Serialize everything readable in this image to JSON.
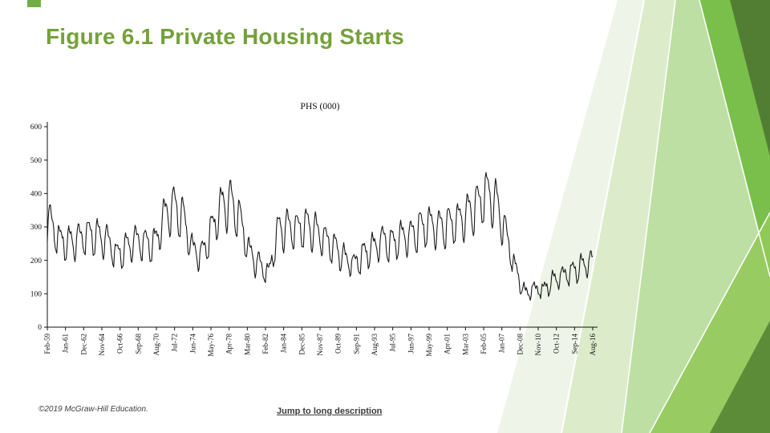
{
  "slide": {
    "title": "Figure 6.1 Private Housing Starts",
    "footer_copyright": "©2019 McGraw-Hill Education.",
    "link_text": "Jump to long description"
  },
  "theme": {
    "title_color": "#74a13a",
    "accent_green": "#70ad47",
    "footer_color": "#404040",
    "link_color": "#3a3a3a"
  },
  "chart_data": {
    "type": "line",
    "title": "PHS (000)",
    "xlabel": "",
    "ylabel": "",
    "ylim": [
      0,
      600
    ],
    "yticks": [
      0,
      100,
      200,
      300,
      400,
      500,
      600
    ],
    "grid": false,
    "legend": "none",
    "line_color": "#1a1a1a",
    "x_tick_labels": [
      "Feb-59",
      "Jan-61",
      "Dec-62",
      "Nov-64",
      "Oct-66",
      "Sep-68",
      "Aug-70",
      "Jul-72",
      "Jun-74",
      "May-76",
      "Apr-78",
      "Mar-80",
      "Feb-82",
      "Jan-84",
      "Dec-85",
      "Nov-87",
      "Oct-89",
      "Sep-91",
      "Aug-93",
      "Jul-95",
      "Jun-97",
      "May-99",
      "Apr-01",
      "Mar-03",
      "Feb-05",
      "Jan-07",
      "Dec-08",
      "Nov-10",
      "Oct-12",
      "Sep-14",
      "Aug-16"
    ],
    "x_tick_interval_months": 23,
    "start_month": "Feb-59",
    "end_month": "Aug-16",
    "n_months": 691,
    "annual_trend": {
      "start_year": 1959,
      "values": [
        310,
        255,
        250,
        262,
        275,
        268,
        258,
        212,
        235,
        258,
        248,
        246,
        330,
        358,
        325,
        228,
        215,
        288,
        358,
        372,
        318,
        218,
        185,
        158,
        288,
        295,
        290,
        300,
        284,
        258,
        234,
        204,
        186,
        214,
        236,
        258,
        246,
        268,
        270,
        294,
        304,
        294,
        304,
        314,
        336,
        362,
        398,
        368,
        278,
        172,
        100,
        114,
        111,
        138,
        154,
        164,
        180,
        196
      ]
    },
    "seasonal_pattern_jan_dec": [
      -1.15,
      -1.0,
      0.0,
      0.75,
      1.0,
      0.85,
      0.65,
      0.55,
      0.35,
      0.15,
      -0.45,
      -1.0
    ],
    "seasonal_amplitude_frac": 0.18
  }
}
